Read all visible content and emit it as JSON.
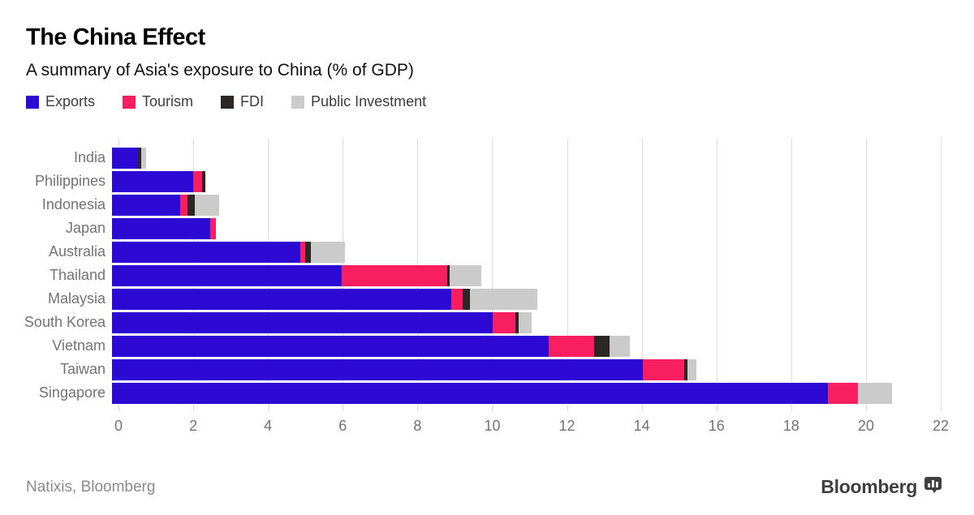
{
  "header": {
    "title": "The China Effect",
    "subtitle": "A summary of Asia's exposure to China (% of GDP)"
  },
  "chart_data": {
    "type": "bar",
    "orientation": "horizontal",
    "stacked": true,
    "title": "The China Effect",
    "subtitle": "A summary of Asia's exposure to China (% of GDP)",
    "categories": [
      "India",
      "Philippines",
      "Indonesia",
      "Japan",
      "Australia",
      "Thailand",
      "Malaysia",
      "South Korea",
      "Vietnam",
      "Taiwan",
      "Singapore"
    ],
    "series": [
      {
        "name": "Exports",
        "color": "#2c0ad3",
        "values": [
          0.7,
          2.15,
          1.8,
          2.6,
          5.0,
          6.1,
          9.0,
          10.1,
          11.6,
          14.1,
          19.0
        ]
      },
      {
        "name": "Tourism",
        "color": "#f91e5f",
        "values": [
          0.0,
          0.25,
          0.2,
          0.15,
          0.12,
          2.8,
          0.3,
          0.6,
          1.2,
          1.1,
          0.8
        ]
      },
      {
        "name": "FDI",
        "color": "#2b2726",
        "values": [
          0.07,
          0.08,
          0.2,
          0.0,
          0.16,
          0.06,
          0.2,
          0.1,
          0.4,
          0.07,
          0.0
        ]
      },
      {
        "name": "Public Investment",
        "color": "#cbcbcb",
        "values": [
          0.13,
          0.0,
          0.65,
          0.0,
          0.9,
          0.85,
          1.8,
          0.35,
          0.55,
          0.25,
          0.9
        ]
      }
    ],
    "totals": [
      0.9,
      2.48,
      2.85,
      2.75,
      6.18,
      9.81,
      11.3,
      11.15,
      13.75,
      15.52,
      20.7
    ],
    "xlim": [
      0,
      22
    ],
    "xticks": [
      0,
      2,
      4,
      6,
      8,
      10,
      12,
      14,
      16,
      18,
      20,
      22
    ],
    "grid": true,
    "legend_position": "top"
  },
  "footer": {
    "source": "Natixis, Bloomberg",
    "logo_text": "Bloomberg"
  },
  "colors": {
    "exports": "#2c0ad3",
    "tourism": "#f91e5f",
    "fdi": "#2b2726",
    "public_investment": "#cbcbcb",
    "gridline": "#dcdcdc",
    "axis_text": "#737373"
  }
}
